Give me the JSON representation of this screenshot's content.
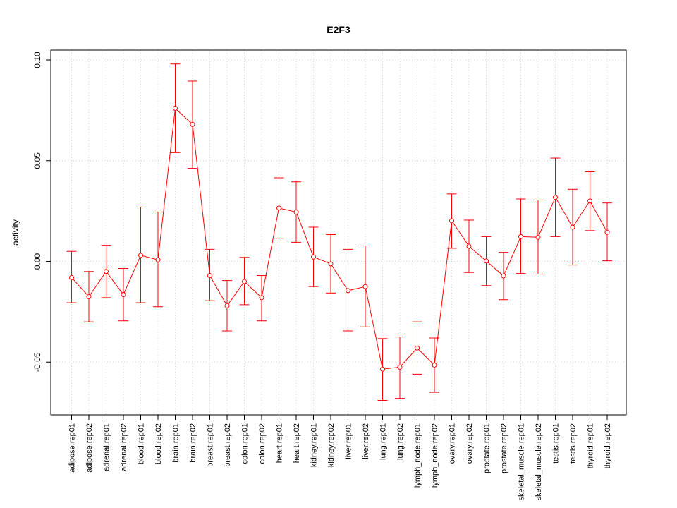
{
  "chart_data": {
    "type": "line",
    "title": "E2F3",
    "xlabel": "",
    "ylabel": "activity",
    "ylim": [
      -0.076,
      0.1
    ],
    "yticks": [
      "-0.05",
      "0.00",
      "0.05",
      "0.10"
    ],
    "ytick_values": [
      -0.05,
      0.0,
      0.05,
      0.1
    ],
    "grid": true,
    "color": "#ff0000",
    "grid_color": "#d3d3d3",
    "categories": [
      "adipose.rep01",
      "adipose.rep02",
      "adrenal.rep01",
      "adrenal.rep02",
      "blood.rep01",
      "blood.rep02",
      "brain.rep01",
      "brain.rep02",
      "breast.rep01",
      "breast.rep02",
      "colon.rep01",
      "colon.rep02",
      "heart.rep01",
      "heart.rep02",
      "kidney.rep01",
      "kidney.rep02",
      "liver.rep01",
      "liver.rep02",
      "lung.rep01",
      "lung.rep02",
      "lymph_node.rep01",
      "lymph_node.rep02",
      "ovary.rep01",
      "ovary.rep02",
      "prostate.rep01",
      "prostate.rep02",
      "skeletal_muscle.rep01",
      "skeletal_muscle.rep02",
      "testis.rep01",
      "testis.rep02",
      "thyroid.rep01",
      "thyroid.rep02"
    ],
    "series": [
      {
        "values": [
          -0.008,
          -0.0175,
          -0.005,
          -0.0165,
          0.003,
          0.0008,
          0.076,
          0.068,
          -0.007,
          -0.022,
          -0.01,
          -0.018,
          0.0265,
          0.0245,
          0.0022,
          -0.0012,
          -0.0145,
          -0.0125,
          -0.0535,
          -0.0525,
          -0.043,
          -0.0515,
          0.0202,
          0.0075,
          0.0002,
          -0.0072,
          0.0123,
          0.012,
          0.0318,
          0.017,
          0.03,
          0.0145
        ],
        "upper": [
          0.005,
          -0.005,
          0.008,
          -0.0035,
          0.027,
          0.0245,
          0.098,
          0.0895,
          0.006,
          -0.0095,
          0.002,
          -0.007,
          0.0415,
          0.0395,
          0.017,
          0.0133,
          0.006,
          0.0077,
          -0.0383,
          -0.0375,
          -0.03,
          -0.038,
          0.0335,
          0.0205,
          0.0123,
          0.0045,
          0.031,
          0.0305,
          0.0513,
          0.0358,
          0.0445,
          0.029
        ],
        "lower": [
          -0.0205,
          -0.03,
          -0.018,
          -0.0295,
          -0.0205,
          -0.0225,
          0.054,
          0.0462,
          -0.0195,
          -0.0345,
          -0.0215,
          -0.0295,
          0.0115,
          0.0095,
          -0.0125,
          -0.0157,
          -0.0345,
          -0.0325,
          -0.069,
          -0.068,
          -0.056,
          -0.065,
          0.0065,
          -0.0055,
          -0.012,
          -0.019,
          -0.006,
          -0.0063,
          0.0123,
          -0.0018,
          0.0153,
          0.0003
        ]
      }
    ]
  }
}
